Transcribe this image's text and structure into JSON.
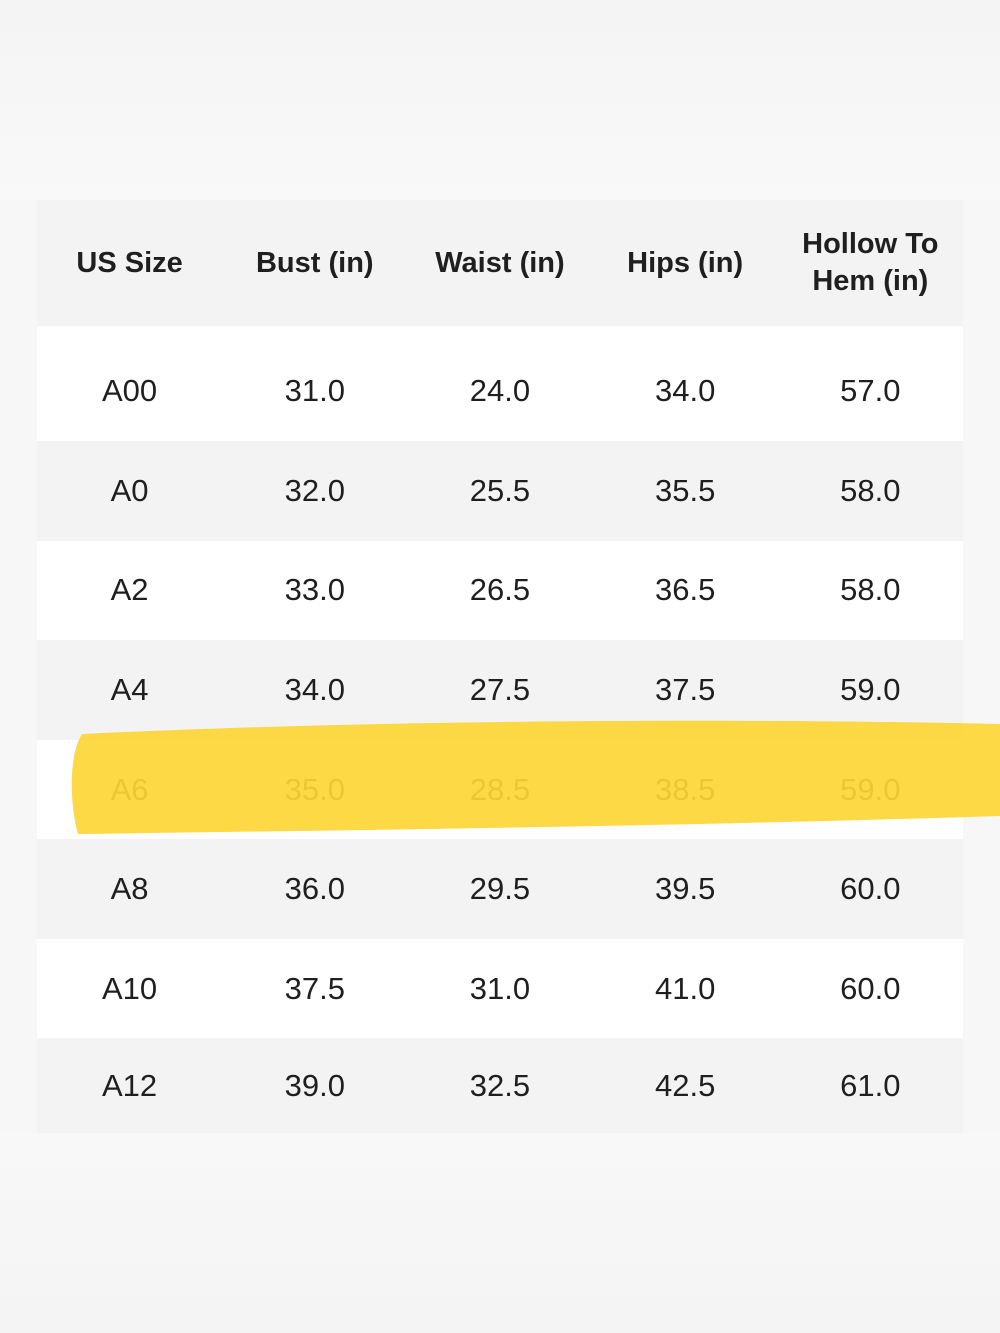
{
  "table": {
    "columns": [
      "US Size",
      "Bust (in)",
      "Waist (in)",
      "Hips (in)",
      "Hollow To\nHem (in)"
    ],
    "rows": [
      [
        "A00",
        "31.0",
        "24.0",
        "34.0",
        "57.0"
      ],
      [
        "A0",
        "32.0",
        "25.5",
        "35.5",
        "58.0"
      ],
      [
        "A2",
        "33.0",
        "26.5",
        "36.5",
        "58.0"
      ],
      [
        "A4",
        "34.0",
        "27.5",
        "37.5",
        "59.0"
      ],
      [
        "A6",
        "35.0",
        "28.5",
        "38.5",
        "59.0"
      ],
      [
        "A8",
        "36.0",
        "29.5",
        "39.5",
        "60.0"
      ],
      [
        "A10",
        "37.5",
        "31.0",
        "41.0",
        "60.0"
      ],
      [
        "A12",
        "39.0",
        "32.5",
        "42.5",
        "61.0"
      ]
    ],
    "highlighted_row": "A6"
  },
  "colors": {
    "highlighter": "#fdd635",
    "row_shade": "#f3f3f3",
    "text": "#1f1f1f"
  }
}
